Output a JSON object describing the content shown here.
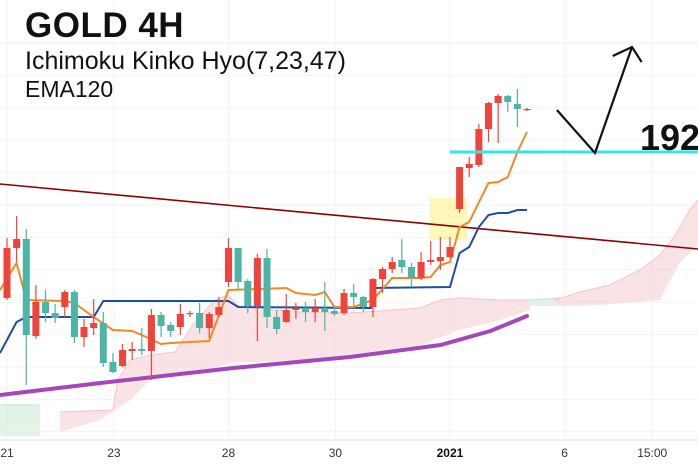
{
  "header": {
    "title": "GOLD 4H",
    "indicator_1": "Ichimoku Kinko Hyo(7,23,47)",
    "indicator_2": "EMA120"
  },
  "chart_data": {
    "type": "candlestick",
    "title": "GOLD 4H",
    "x_axis": {
      "unit": "bar index",
      "range": [
        0.27,
        72.75
      ],
      "ticks": [
        {
          "index": 1,
          "label": "21"
        },
        {
          "index": 12.1,
          "label": "23"
        },
        {
          "index": 24,
          "label": "28"
        },
        {
          "index": 35.1,
          "label": "30"
        },
        {
          "index": 47,
          "label": "2021",
          "bold": true
        },
        {
          "index": 58.9,
          "label": "6"
        },
        {
          "index": 68,
          "label": "15:00"
        }
      ]
    },
    "y_axis": {
      "unit": "price (estimated, not printed)",
      "range": [
        1763.5,
        1996
      ]
    },
    "grid": true,
    "colors": {
      "up": "#f0443a",
      "down": "#4cb5a5",
      "tenkan": "#f08a24",
      "kijun": "#1f4e9e",
      "ema": "#a347ba",
      "trendline": "#8b0000",
      "level": "#33e5e8",
      "cloud_bear": "#f8d7da",
      "cloud_bull": "#d7eedb",
      "highlight": "#fff59d",
      "drawing": "#111111"
    },
    "candles": [
      [
        1847,
        1877,
        1846,
        1872
      ],
      [
        1872,
        1888,
        1865,
        1876.5
      ],
      [
        1876.5,
        1881.5,
        1803.5,
        1828.5
      ],
      [
        1828,
        1853.5,
        1826.5,
        1845
      ],
      [
        1845,
        1851,
        1835,
        1839.5
      ],
      [
        1839.5,
        1844,
        1834.5,
        1837
      ],
      [
        1842.5,
        1851,
        1837.5,
        1850
      ],
      [
        1850,
        1851,
        1824.5,
        1827.5
      ],
      [
        1827.5,
        1836.5,
        1822.5,
        1832.5
      ],
      [
        1832,
        1846.5,
        1828.5,
        1834.5
      ],
      [
        1834.5,
        1840,
        1812.5,
        1814.5
      ],
      [
        1815,
        1819.5,
        1809.5,
        1810
      ],
      [
        1813,
        1824,
        1812.5,
        1821
      ],
      [
        1820.5,
        1825,
        1816,
        1821.5
      ],
      [
        1821.5,
        1832,
        1818.5,
        1820.5
      ],
      [
        1820.5,
        1841.5,
        1806,
        1838.5
      ],
      [
        1838.5,
        1840,
        1827.5,
        1833
      ],
      [
        1833.5,
        1835,
        1827.5,
        1830.5
      ],
      [
        1832.5,
        1844,
        1828.5,
        1839
      ],
      [
        1839,
        1840.5,
        1837.5,
        1839.5
      ],
      [
        1839.5,
        1844.5,
        1829.5,
        1832
      ],
      [
        1832,
        1840,
        1827,
        1839
      ],
      [
        1838.5,
        1847.5,
        1837.5,
        1842.5
      ],
      [
        1855,
        1877,
        1852.5,
        1872
      ],
      [
        1872,
        1872,
        1851,
        1855
      ],
      [
        1855.5,
        1856.5,
        1839.5,
        1843
      ],
      [
        1843,
        1869,
        1825.5,
        1867
      ],
      [
        1867,
        1871.5,
        1832,
        1837.5
      ],
      [
        1837.5,
        1841,
        1829,
        1831.5
      ],
      [
        1835,
        1849,
        1834.5,
        1841
      ],
      [
        1841,
        1844.5,
        1836.5,
        1842
      ],
      [
        1842,
        1845,
        1835,
        1840
      ],
      [
        1840,
        1846.5,
        1835,
        1842
      ],
      [
        1842,
        1855,
        1830.5,
        1840
      ],
      [
        1840.5,
        1843,
        1838,
        1839
      ],
      [
        1839.5,
        1851.5,
        1838.5,
        1849.5
      ],
      [
        1849.5,
        1854,
        1843,
        1847.5
      ],
      [
        1847.5,
        1848,
        1840,
        1842.5
      ],
      [
        1842.5,
        1857,
        1837.5,
        1856.5
      ],
      [
        1856.5,
        1862.5,
        1849.5,
        1861.5
      ],
      [
        1861.5,
        1867.5,
        1859.5,
        1865
      ],
      [
        1866,
        1876.5,
        1859.5,
        1862.5
      ],
      [
        1862.5,
        1864.5,
        1852.5,
        1857
      ],
      [
        1857,
        1870,
        1856,
        1865
      ],
      [
        1865,
        1875.5,
        1863.5,
        1866
      ],
      [
        1865.5,
        1877.5,
        1861,
        1867.5
      ],
      [
        1867.5,
        1877.5,
        1867,
        1872.5
      ],
      [
        1891.5,
        1912.5,
        1889.5,
        1912.5
      ],
      [
        1912,
        1917.5,
        1907.5,
        1914
      ],
      [
        1913.5,
        1934,
        1912.5,
        1931.5
      ],
      [
        1931.5,
        1945,
        1925,
        1944.5
      ],
      [
        1944.5,
        1949,
        1924.5,
        1948
      ],
      [
        1948,
        1948.5,
        1940,
        1945
      ],
      [
        1944,
        1951.5,
        1932.5,
        1941.5
      ],
      [
        1941,
        1942,
        1940.5,
        1941.5
      ]
    ],
    "candle_start_index": 1,
    "tenkan": [
      [
        0.27,
        1851
      ],
      [
        2,
        1864.5
      ],
      [
        3,
        1846
      ],
      [
        7,
        1845.5
      ],
      [
        8,
        1844.5
      ],
      [
        10,
        1837.5
      ],
      [
        12,
        1831
      ],
      [
        14,
        1830.5
      ],
      [
        15,
        1828.5
      ],
      [
        17,
        1824
      ],
      [
        18,
        1824.5
      ],
      [
        22,
        1825.5
      ],
      [
        24,
        1851
      ],
      [
        30,
        1852
      ],
      [
        31,
        1849.5
      ],
      [
        33,
        1848.5
      ],
      [
        34,
        1850
      ],
      [
        35,
        1842.5
      ],
      [
        37,
        1842.5
      ],
      [
        39,
        1846
      ],
      [
        41,
        1857
      ],
      [
        44,
        1857
      ],
      [
        45,
        1857.5
      ],
      [
        46,
        1863.5
      ],
      [
        47,
        1865
      ],
      [
        48,
        1882.5
      ],
      [
        49,
        1885
      ],
      [
        51,
        1904.5
      ],
      [
        52,
        1905
      ],
      [
        53,
        1907.5
      ],
      [
        54,
        1920
      ],
      [
        55,
        1930
      ]
    ],
    "kijun": [
      [
        0.27,
        1819.5
      ],
      [
        2,
        1835
      ],
      [
        3,
        1837.5
      ],
      [
        10,
        1837.5
      ],
      [
        11,
        1845.5
      ],
      [
        24,
        1845.5
      ],
      [
        25,
        1842.5
      ],
      [
        38.8,
        1842
      ],
      [
        39,
        1852
      ],
      [
        47,
        1852.5
      ],
      [
        48,
        1869.5
      ],
      [
        49,
        1872.5
      ],
      [
        50,
        1882.5
      ],
      [
        51,
        1888.5
      ],
      [
        52,
        1889.5
      ],
      [
        53,
        1889.5
      ],
      [
        54,
        1891
      ],
      [
        55,
        1891
      ]
    ],
    "ema120": [
      [
        0.27,
        1798.5
      ],
      [
        10.7,
        1804.5
      ],
      [
        24.5,
        1812
      ],
      [
        36.6,
        1817.5
      ],
      [
        46,
        1823.5
      ],
      [
        51.2,
        1830.5
      ],
      [
        55,
        1838
      ]
    ],
    "cloud": [
      {
        "kind": "bull",
        "upper": [
          [
            0.27,
            1793.5
          ],
          [
            4.43,
            1793.5
          ]
        ],
        "lower": [
          [
            0.27,
            1778
          ],
          [
            4.43,
            1778
          ]
        ]
      },
      {
        "kind": "bear",
        "upper": [
          [
            6.5,
            1790
          ],
          [
            12,
            1791
          ],
          [
            12.5,
            1806
          ],
          [
            13.8,
            1816
          ],
          [
            15.85,
            1818.5
          ],
          [
            18.45,
            1820
          ],
          [
            20.5,
            1835
          ],
          [
            22.6,
            1846
          ],
          [
            23.85,
            1848.5
          ],
          [
            25.2,
            1842.5
          ],
          [
            31.4,
            1840
          ],
          [
            36.6,
            1839.5
          ],
          [
            43.9,
            1842
          ],
          [
            46,
            1846
          ],
          [
            48,
            1847
          ],
          [
            52.2,
            1846
          ],
          [
            55.3,
            1846
          ]
        ],
        "lower": [
          [
            6.5,
            1780
          ],
          [
            10.66,
            1786
          ],
          [
            13.8,
            1796
          ],
          [
            15.85,
            1806
          ],
          [
            21,
            1810
          ],
          [
            24.05,
            1814.5
          ],
          [
            31.4,
            1816
          ],
          [
            36.6,
            1818.5
          ],
          [
            43.9,
            1823.5
          ],
          [
            48,
            1831
          ],
          [
            52.2,
            1836
          ],
          [
            55.3,
            1841
          ]
        ]
      },
      {
        "kind": "bull",
        "upper": [
          [
            55.3,
            1846
          ],
          [
            58.4,
            1847
          ]
        ],
        "lower": [
          [
            55.3,
            1843
          ],
          [
            58.4,
            1843
          ]
        ]
      },
      {
        "kind": "bear",
        "upper": [
          [
            57.9,
            1846
          ],
          [
            60.5,
            1850
          ],
          [
            63.6,
            1853.5
          ],
          [
            66.7,
            1861
          ],
          [
            68.8,
            1868.5
          ],
          [
            70.4,
            1878.5
          ],
          [
            71.9,
            1891
          ],
          [
            72.75,
            1896
          ]
        ],
        "lower": [
          [
            58.4,
            1843
          ],
          [
            62.6,
            1843.5
          ],
          [
            68.8,
            1846
          ],
          [
            69.6,
            1853.5
          ],
          [
            70.9,
            1865
          ],
          [
            72.75,
            1873.5
          ]
        ]
      }
    ],
    "trendline": [
      [
        0.27,
        1904
      ],
      [
        72.75,
        1871.5
      ]
    ],
    "level_line": {
      "from": 47,
      "to": 72.75,
      "price": 1920,
      "label": "192"
    },
    "highlight_box": {
      "from": 44.9,
      "to": 48.8,
      "high": 1897,
      "low": 1876
    },
    "arrow_drawing": {
      "path": [
        [
          58.1,
          1941
        ],
        [
          62.06,
          1919.5
        ],
        [
          65.9,
          1972.5
        ]
      ],
      "head": [
        [
          63.9,
          1968
        ],
        [
          65.9,
          1972.5
        ],
        [
          66.9,
          1965
        ]
      ]
    }
  }
}
